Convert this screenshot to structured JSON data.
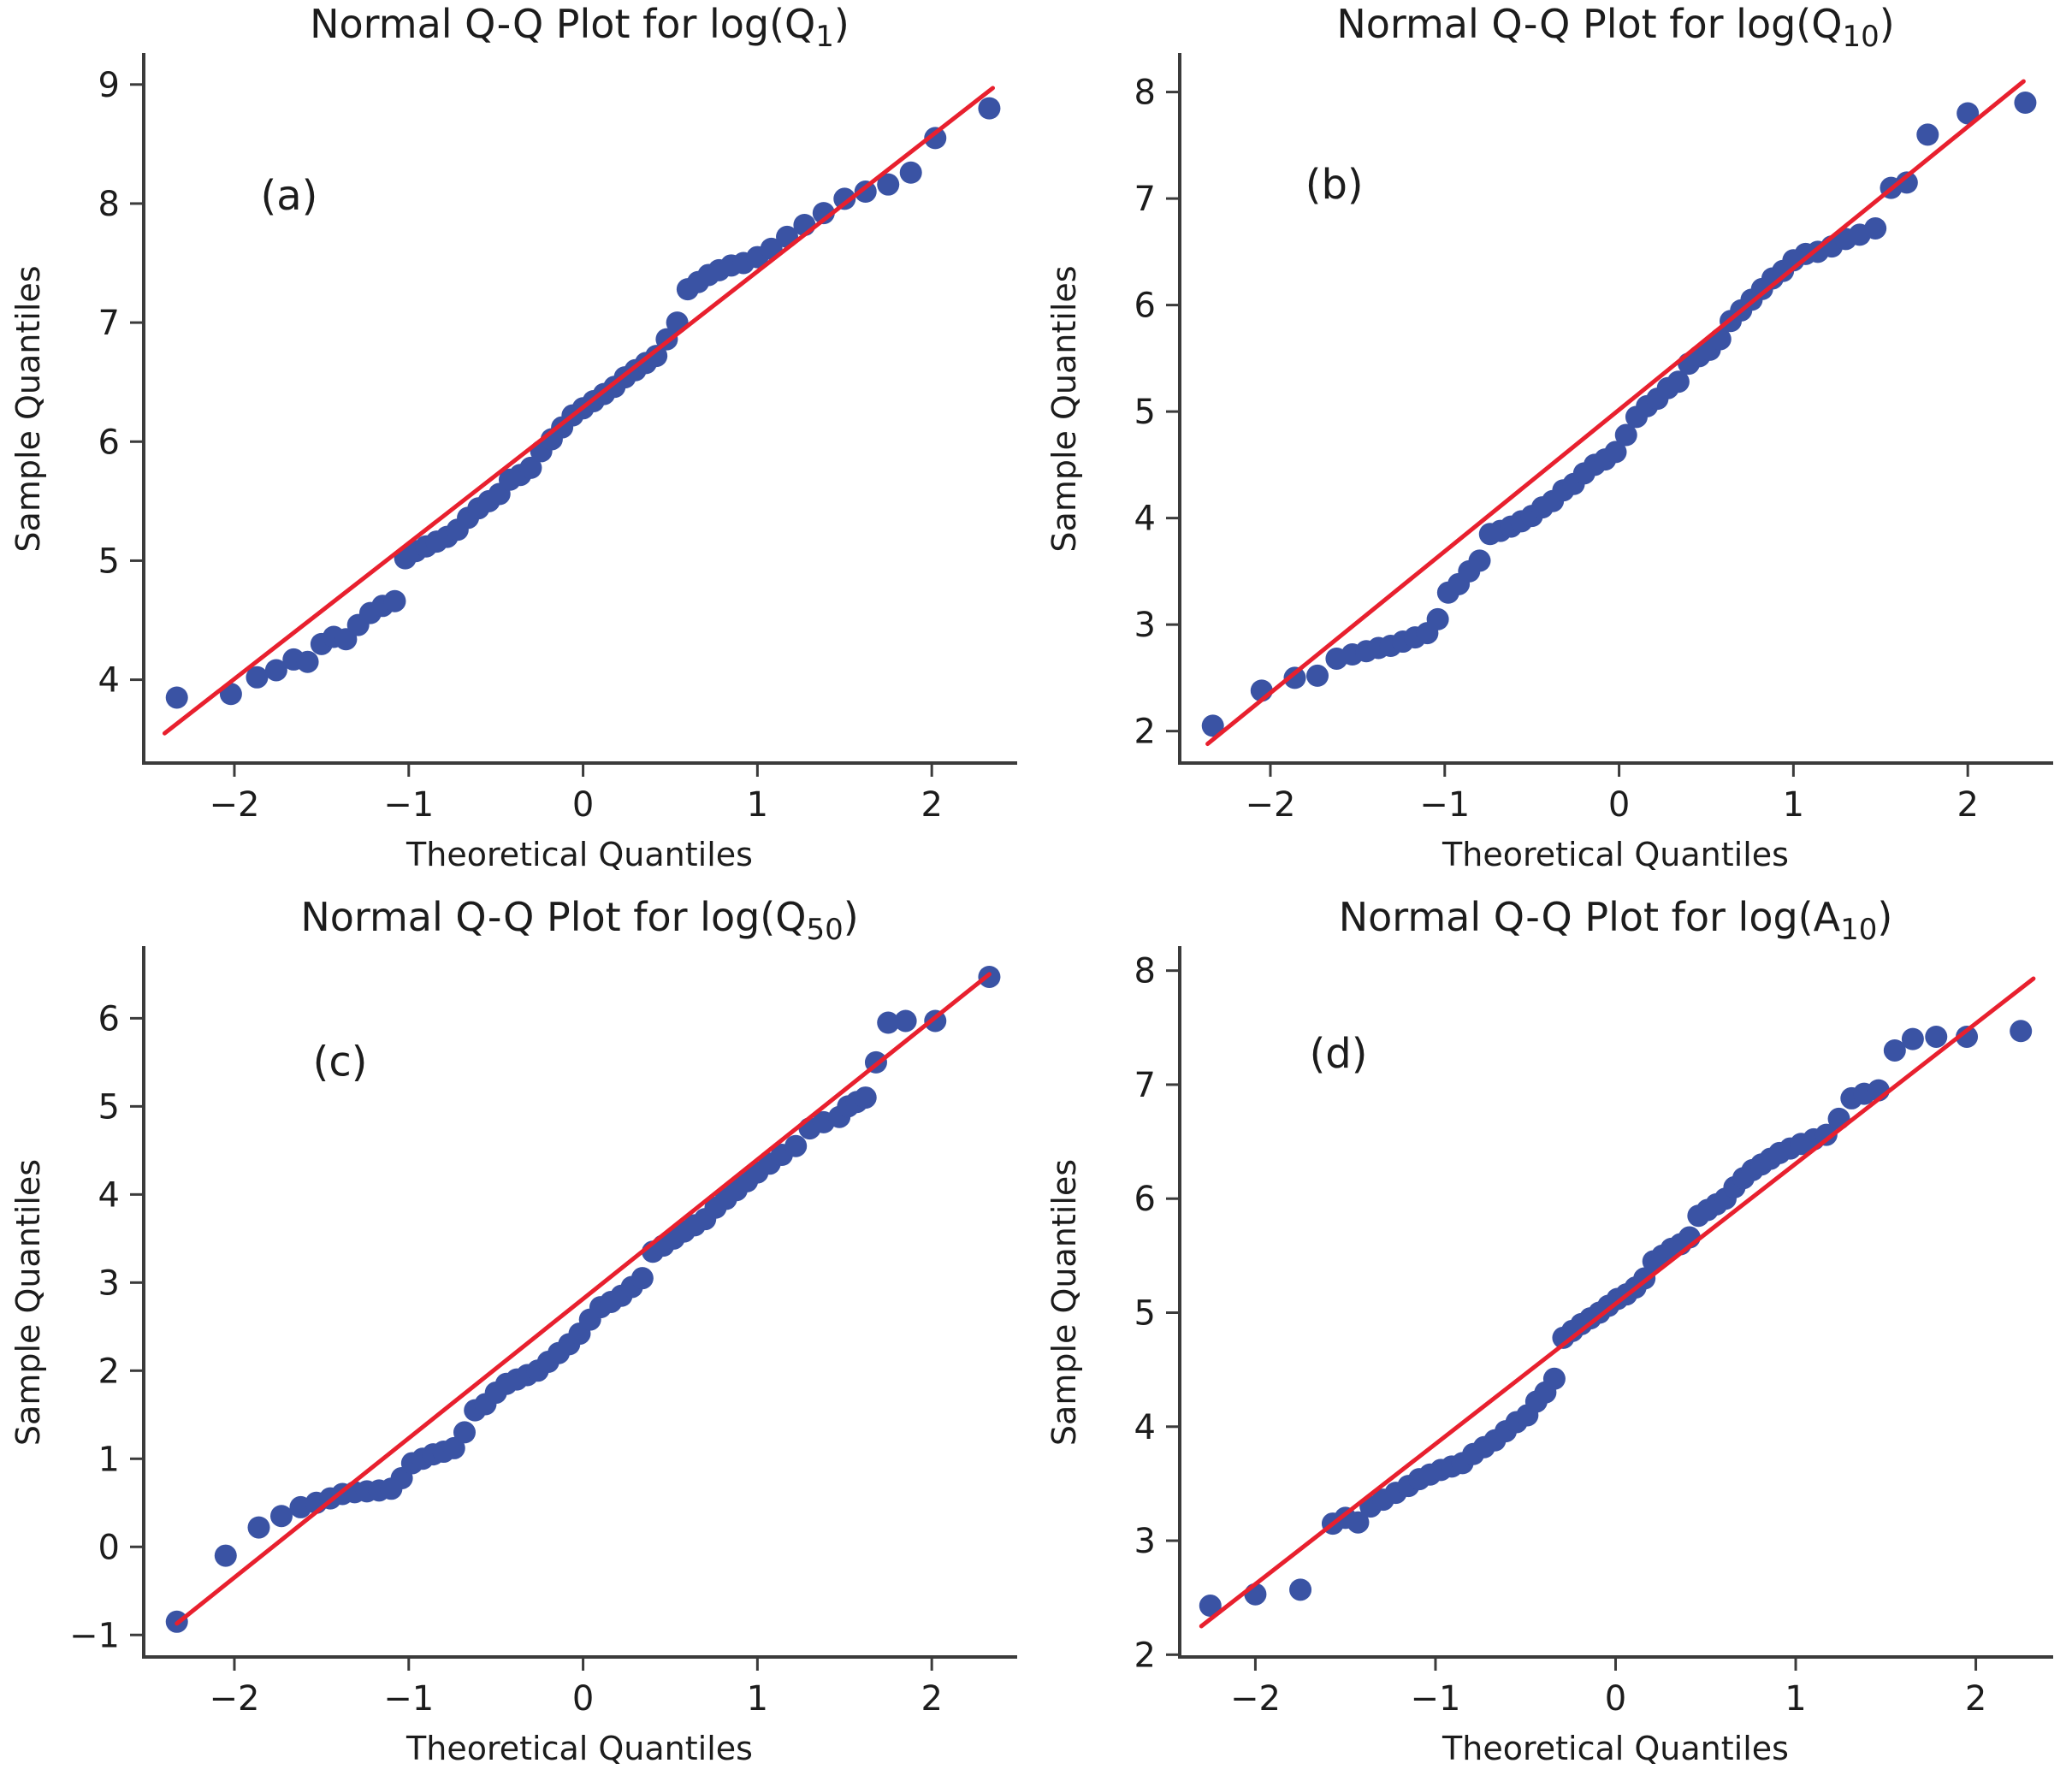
{
  "figure": {
    "background": "#ffffff",
    "n_panels": 4
  },
  "style": {
    "point_color": "#3a53a4",
    "line_color": "#e8202e",
    "axis_color": "#3b3b3b",
    "text_color": "#1c1c1c",
    "point_radius": 13,
    "line_width": 5,
    "spine_width": 4
  },
  "chart_data": [
    {
      "type": "scatter",
      "panel_label": "(a)",
      "title": {
        "pre": "Normal Q-Q Plot for log(Q",
        "sub": "1",
        "post": ")"
      },
      "xlabel": "Theoretical Quantiles",
      "ylabel": "Sample Quantiles",
      "xlim": [
        -2.52,
        2.48
      ],
      "ylim": [
        3.3,
        9.25
      ],
      "x_ticks": [
        -2,
        -1,
        0,
        1,
        2
      ],
      "y_ticks": [
        4,
        5,
        6,
        7,
        8,
        9
      ],
      "grid": false,
      "legend": null,
      "ref_line": {
        "x1": -2.4,
        "y1": 3.55,
        "x2": 2.35,
        "y2": 8.97
      },
      "annotation": {
        "text": "(a)",
        "x": -1.85,
        "y": 7.95
      },
      "points": [
        [
          -2.33,
          3.85
        ],
        [
          -2.02,
          3.88
        ],
        [
          -1.87,
          4.02
        ],
        [
          -1.76,
          4.08
        ],
        [
          -1.66,
          4.17
        ],
        [
          -1.58,
          4.15
        ],
        [
          -1.5,
          4.3
        ],
        [
          -1.43,
          4.36
        ],
        [
          -1.36,
          4.34
        ],
        [
          -1.29,
          4.46
        ],
        [
          -1.22,
          4.56
        ],
        [
          -1.15,
          4.62
        ],
        [
          -1.08,
          4.66
        ],
        [
          -1.02,
          5.02
        ],
        [
          -0.96,
          5.08
        ],
        [
          -0.9,
          5.12
        ],
        [
          -0.84,
          5.16
        ],
        [
          -0.78,
          5.2
        ],
        [
          -0.72,
          5.26
        ],
        [
          -0.66,
          5.36
        ],
        [
          -0.6,
          5.44
        ],
        [
          -0.54,
          5.5
        ],
        [
          -0.48,
          5.56
        ],
        [
          -0.42,
          5.68
        ],
        [
          -0.36,
          5.72
        ],
        [
          -0.3,
          5.78
        ],
        [
          -0.24,
          5.92
        ],
        [
          -0.18,
          6.02
        ],
        [
          -0.12,
          6.12
        ],
        [
          -0.06,
          6.22
        ],
        [
          0.0,
          6.28
        ],
        [
          0.06,
          6.34
        ],
        [
          0.12,
          6.4
        ],
        [
          0.18,
          6.46
        ],
        [
          0.24,
          6.54
        ],
        [
          0.3,
          6.6
        ],
        [
          0.36,
          6.66
        ],
        [
          0.42,
          6.72
        ],
        [
          0.48,
          6.86
        ],
        [
          0.54,
          7.0
        ],
        [
          0.6,
          7.28
        ],
        [
          0.66,
          7.34
        ],
        [
          0.72,
          7.4
        ],
        [
          0.78,
          7.44
        ],
        [
          0.85,
          7.48
        ],
        [
          0.92,
          7.5
        ],
        [
          1.0,
          7.55
        ],
        [
          1.08,
          7.62
        ],
        [
          1.17,
          7.72
        ],
        [
          1.27,
          7.82
        ],
        [
          1.38,
          7.92
        ],
        [
          1.5,
          8.04
        ],
        [
          1.62,
          8.1
        ],
        [
          1.75,
          8.16
        ],
        [
          1.88,
          8.26
        ],
        [
          2.02,
          8.55
        ],
        [
          2.33,
          8.8
        ]
      ]
    },
    {
      "type": "scatter",
      "panel_label": "(b)",
      "title": {
        "pre": "Normal Q-Q Plot for log(Q",
        "sub": "10",
        "post": ")"
      },
      "xlabel": "Theoretical Quantiles",
      "ylabel": "Sample Quantiles",
      "xlim": [
        -2.52,
        2.48
      ],
      "ylim": [
        1.7,
        8.35
      ],
      "x_ticks": [
        -2,
        -1,
        0,
        1,
        2
      ],
      "y_ticks": [
        2,
        3,
        4,
        5,
        6,
        7,
        8
      ],
      "grid": false,
      "legend": null,
      "ref_line": {
        "x1": -2.36,
        "y1": 1.88,
        "x2": 2.32,
        "y2": 8.1
      },
      "annotation": {
        "text": "(b)",
        "x": -1.8,
        "y": 7.0
      },
      "points": [
        [
          -2.33,
          2.05
        ],
        [
          -2.05,
          2.38
        ],
        [
          -1.86,
          2.5
        ],
        [
          -1.73,
          2.52
        ],
        [
          -1.62,
          2.68
        ],
        [
          -1.53,
          2.72
        ],
        [
          -1.45,
          2.75
        ],
        [
          -1.38,
          2.78
        ],
        [
          -1.31,
          2.8
        ],
        [
          -1.24,
          2.84
        ],
        [
          -1.17,
          2.88
        ],
        [
          -1.1,
          2.92
        ],
        [
          -1.04,
          3.05
        ],
        [
          -0.98,
          3.3
        ],
        [
          -0.92,
          3.38
        ],
        [
          -0.86,
          3.5
        ],
        [
          -0.8,
          3.6
        ],
        [
          -0.74,
          3.85
        ],
        [
          -0.68,
          3.88
        ],
        [
          -0.62,
          3.92
        ],
        [
          -0.56,
          3.97
        ],
        [
          -0.5,
          4.02
        ],
        [
          -0.44,
          4.1
        ],
        [
          -0.38,
          4.16
        ],
        [
          -0.32,
          4.26
        ],
        [
          -0.26,
          4.32
        ],
        [
          -0.2,
          4.42
        ],
        [
          -0.14,
          4.5
        ],
        [
          -0.08,
          4.55
        ],
        [
          -0.02,
          4.62
        ],
        [
          0.04,
          4.78
        ],
        [
          0.1,
          4.95
        ],
        [
          0.16,
          5.05
        ],
        [
          0.22,
          5.12
        ],
        [
          0.28,
          5.22
        ],
        [
          0.34,
          5.28
        ],
        [
          0.4,
          5.45
        ],
        [
          0.46,
          5.52
        ],
        [
          0.52,
          5.58
        ],
        [
          0.58,
          5.68
        ],
        [
          0.64,
          5.85
        ],
        [
          0.7,
          5.95
        ],
        [
          0.76,
          6.05
        ],
        [
          0.82,
          6.15
        ],
        [
          0.88,
          6.25
        ],
        [
          0.94,
          6.32
        ],
        [
          1.0,
          6.42
        ],
        [
          1.07,
          6.48
        ],
        [
          1.14,
          6.5
        ],
        [
          1.22,
          6.55
        ],
        [
          1.3,
          6.62
        ],
        [
          1.38,
          6.66
        ],
        [
          1.47,
          6.72
        ],
        [
          1.56,
          7.1
        ],
        [
          1.65,
          7.15
        ],
        [
          1.77,
          7.6
        ],
        [
          2.0,
          7.8
        ],
        [
          2.33,
          7.9
        ]
      ]
    },
    {
      "type": "scatter",
      "panel_label": "(c)",
      "title": {
        "pre": "Normal Q-Q Plot for log(Q",
        "sub": "50",
        "post": ")"
      },
      "xlabel": "Theoretical Quantiles",
      "ylabel": "Sample Quantiles",
      "xlim": [
        -2.52,
        2.48
      ],
      "ylim": [
        -1.25,
        6.8
      ],
      "x_ticks": [
        -2,
        -1,
        0,
        1,
        2
      ],
      "y_ticks": [
        -1,
        0,
        1,
        2,
        3,
        4,
        5,
        6
      ],
      "grid": false,
      "legend": null,
      "ref_line": {
        "x1": -2.33,
        "y1": -0.87,
        "x2": 2.33,
        "y2": 6.5
      },
      "annotation": {
        "text": "(c)",
        "x": -1.55,
        "y": 5.35
      },
      "points": [
        [
          -2.33,
          -0.85
        ],
        [
          -2.05,
          -0.1
        ],
        [
          -1.86,
          0.22
        ],
        [
          -1.73,
          0.35
        ],
        [
          -1.62,
          0.45
        ],
        [
          -1.53,
          0.5
        ],
        [
          -1.45,
          0.55
        ],
        [
          -1.38,
          0.6
        ],
        [
          -1.31,
          0.62
        ],
        [
          -1.24,
          0.63
        ],
        [
          -1.17,
          0.64
        ],
        [
          -1.1,
          0.66
        ],
        [
          -1.04,
          0.78
        ],
        [
          -0.98,
          0.95
        ],
        [
          -0.92,
          1.0
        ],
        [
          -0.86,
          1.05
        ],
        [
          -0.8,
          1.08
        ],
        [
          -0.74,
          1.12
        ],
        [
          -0.68,
          1.3
        ],
        [
          -0.62,
          1.55
        ],
        [
          -0.56,
          1.62
        ],
        [
          -0.5,
          1.75
        ],
        [
          -0.44,
          1.85
        ],
        [
          -0.38,
          1.9
        ],
        [
          -0.32,
          1.95
        ],
        [
          -0.26,
          2.0
        ],
        [
          -0.2,
          2.1
        ],
        [
          -0.14,
          2.2
        ],
        [
          -0.08,
          2.3
        ],
        [
          -0.02,
          2.42
        ],
        [
          0.04,
          2.58
        ],
        [
          0.1,
          2.72
        ],
        [
          0.16,
          2.78
        ],
        [
          0.22,
          2.85
        ],
        [
          0.28,
          2.95
        ],
        [
          0.34,
          3.05
        ],
        [
          0.4,
          3.35
        ],
        [
          0.46,
          3.42
        ],
        [
          0.52,
          3.5
        ],
        [
          0.58,
          3.58
        ],
        [
          0.64,
          3.65
        ],
        [
          0.7,
          3.72
        ],
        [
          0.76,
          3.85
        ],
        [
          0.82,
          3.95
        ],
        [
          0.88,
          4.05
        ],
        [
          0.94,
          4.15
        ],
        [
          1.0,
          4.25
        ],
        [
          1.07,
          4.35
        ],
        [
          1.14,
          4.45
        ],
        [
          1.22,
          4.55
        ],
        [
          1.3,
          4.75
        ],
        [
          1.38,
          4.82
        ],
        [
          1.47,
          4.88
        ],
        [
          1.52,
          5.0
        ],
        [
          1.57,
          5.05
        ],
        [
          1.62,
          5.1
        ],
        [
          1.68,
          5.5
        ],
        [
          1.75,
          5.95
        ],
        [
          1.85,
          5.97
        ],
        [
          2.02,
          5.97
        ],
        [
          2.33,
          6.47
        ]
      ]
    },
    {
      "type": "scatter",
      "panel_label": "(d)",
      "title": {
        "pre": "Normal Q-Q Plot for log(A",
        "sub": "10",
        "post": ")"
      },
      "xlabel": "Theoretical Quantiles",
      "ylabel": "Sample Quantiles",
      "xlim": [
        -2.42,
        2.42
      ],
      "ylim": [
        1.98,
        8.2
      ],
      "x_ticks": [
        -2,
        -1,
        0,
        1,
        2
      ],
      "y_ticks": [
        2,
        3,
        4,
        5,
        6,
        7,
        8
      ],
      "grid": false,
      "legend": null,
      "ref_line": {
        "x1": -2.3,
        "y1": 2.25,
        "x2": 2.32,
        "y2": 7.93
      },
      "annotation": {
        "text": "(d)",
        "x": -1.7,
        "y": 7.15
      },
      "points": [
        [
          -2.25,
          2.43
        ],
        [
          -2.0,
          2.53
        ],
        [
          -1.75,
          2.57
        ],
        [
          -1.57,
          3.15
        ],
        [
          -1.5,
          3.2
        ],
        [
          -1.43,
          3.16
        ],
        [
          -1.36,
          3.3
        ],
        [
          -1.29,
          3.36
        ],
        [
          -1.22,
          3.42
        ],
        [
          -1.15,
          3.48
        ],
        [
          -1.09,
          3.54
        ],
        [
          -1.03,
          3.58
        ],
        [
          -0.97,
          3.62
        ],
        [
          -0.91,
          3.65
        ],
        [
          -0.85,
          3.68
        ],
        [
          -0.79,
          3.76
        ],
        [
          -0.73,
          3.82
        ],
        [
          -0.67,
          3.88
        ],
        [
          -0.61,
          3.96
        ],
        [
          -0.55,
          4.04
        ],
        [
          -0.49,
          4.1
        ],
        [
          -0.44,
          4.22
        ],
        [
          -0.39,
          4.3
        ],
        [
          -0.34,
          4.42
        ],
        [
          -0.29,
          4.78
        ],
        [
          -0.24,
          4.84
        ],
        [
          -0.19,
          4.9
        ],
        [
          -0.14,
          4.95
        ],
        [
          -0.09,
          5.0
        ],
        [
          -0.04,
          5.06
        ],
        [
          0.01,
          5.12
        ],
        [
          0.06,
          5.16
        ],
        [
          0.11,
          5.22
        ],
        [
          0.16,
          5.3
        ],
        [
          0.21,
          5.45
        ],
        [
          0.26,
          5.5
        ],
        [
          0.31,
          5.56
        ],
        [
          0.36,
          5.6
        ],
        [
          0.41,
          5.66
        ],
        [
          0.46,
          5.85
        ],
        [
          0.51,
          5.9
        ],
        [
          0.56,
          5.95
        ],
        [
          0.61,
          6.0
        ],
        [
          0.66,
          6.1
        ],
        [
          0.71,
          6.18
        ],
        [
          0.76,
          6.25
        ],
        [
          0.81,
          6.3
        ],
        [
          0.86,
          6.35
        ],
        [
          0.91,
          6.4
        ],
        [
          0.97,
          6.44
        ],
        [
          1.03,
          6.48
        ],
        [
          1.1,
          6.52
        ],
        [
          1.17,
          6.56
        ],
        [
          1.24,
          6.7
        ],
        [
          1.31,
          6.88
        ],
        [
          1.38,
          6.92
        ],
        [
          1.46,
          6.95
        ],
        [
          1.55,
          7.3
        ],
        [
          1.65,
          7.4
        ],
        [
          1.78,
          7.42
        ],
        [
          1.95,
          7.42
        ],
        [
          2.25,
          7.47
        ]
      ]
    }
  ]
}
